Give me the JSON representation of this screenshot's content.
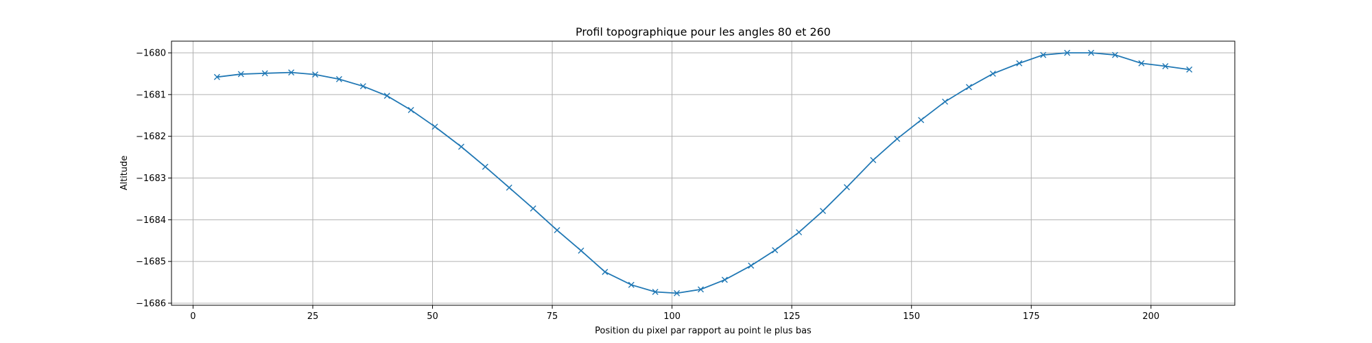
{
  "chart_data": {
    "type": "line",
    "title": "Profil topographique pour les angles 80 et 260",
    "xlabel": "Position du pixel par rapport au point le plus bas",
    "ylabel": "Altitude",
    "xlim": [
      -4.5,
      217.5
    ],
    "ylim": [
      -1686.05,
      -1679.72
    ],
    "xticks": [
      0,
      25,
      50,
      75,
      100,
      125,
      150,
      175,
      200
    ],
    "yticks": [
      -1686,
      -1685,
      -1684,
      -1683,
      -1682,
      -1681,
      -1680
    ],
    "xtick_labels": [
      "0",
      "25",
      "50",
      "75",
      "100",
      "125",
      "150",
      "175",
      "200"
    ],
    "ytick_labels": [
      "−1686",
      "−1685",
      "−1684",
      "−1683",
      "−1682",
      "−1681",
      "−1680"
    ],
    "grid": true,
    "marker": "x",
    "color": "#1f77b4",
    "series": [
      {
        "x": [
          5,
          10,
          15,
          20.5,
          25.5,
          30.5,
          35.5,
          40.5,
          45.5,
          50.5,
          56,
          61,
          66,
          71,
          76,
          81,
          86,
          91.5,
          96.5,
          101,
          106,
          111,
          116.5,
          121.5,
          126.5,
          131.5,
          136.5,
          142,
          147,
          152,
          157,
          162,
          167,
          172.5,
          177.5,
          182.5,
          187.5,
          192.5,
          198,
          203,
          208
        ],
        "y": [
          -1680.58,
          -1680.51,
          -1680.49,
          -1680.47,
          -1680.52,
          -1680.63,
          -1680.8,
          -1681.03,
          -1681.37,
          -1681.77,
          -1682.25,
          -1682.73,
          -1683.23,
          -1683.73,
          -1684.25,
          -1684.74,
          -1685.25,
          -1685.56,
          -1685.73,
          -1685.76,
          -1685.67,
          -1685.44,
          -1685.1,
          -1684.73,
          -1684.3,
          -1683.79,
          -1683.22,
          -1682.57,
          -1682.06,
          -1681.61,
          -1681.17,
          -1680.82,
          -1680.5,
          -1680.25,
          -1680.05,
          -1680.0,
          -1680.0,
          -1680.05,
          -1680.25,
          -1680.32,
          -1680.4
        ]
      }
    ]
  }
}
